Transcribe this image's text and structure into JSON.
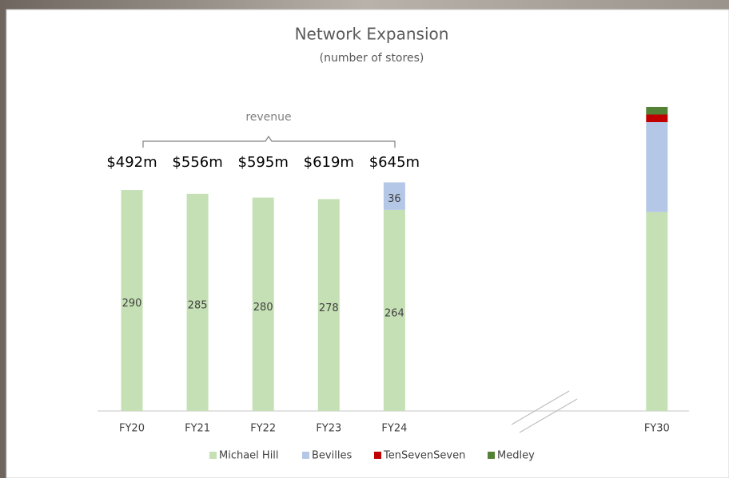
{
  "chart_data": {
    "type": "stacked_bar",
    "title": "Network Expansion",
    "subtitle": "(number of stores)",
    "bracket_label": "revenue",
    "revenue_labels": [
      "$492m",
      "$556m",
      "$595m",
      "$619m",
      "$645m",
      null,
      null,
      null,
      null
    ],
    "categories": [
      "FY20",
      "FY21",
      "FY22",
      "FY23",
      "FY24",
      null,
      null,
      null,
      "FY30"
    ],
    "series": [
      {
        "name": "Michael Hill",
        "color": "#c5e0b4",
        "values": [
          290,
          285,
          280,
          278,
          264,
          null,
          null,
          null,
          261
        ],
        "value_labels": [
          "290",
          "285",
          "280",
          "278",
          "264",
          null,
          null,
          null,
          null
        ]
      },
      {
        "name": "Bevilles",
        "color": "#b4c7e7",
        "values": [
          null,
          null,
          null,
          null,
          36,
          null,
          null,
          null,
          118
        ],
        "value_labels": [
          null,
          null,
          null,
          null,
          "36",
          null,
          null,
          null,
          null
        ]
      },
      {
        "name": "TenSevenSeven",
        "color": "#c00000",
        "values": [
          null,
          null,
          null,
          null,
          null,
          null,
          null,
          null,
          10
        ]
      },
      {
        "name": "Medley",
        "color": "#538135",
        "values": [
          null,
          null,
          null,
          null,
          null,
          null,
          null,
          null,
          10
        ]
      }
    ],
    "ylim": [
      0,
      400
    ],
    "legend": "bottom"
  }
}
